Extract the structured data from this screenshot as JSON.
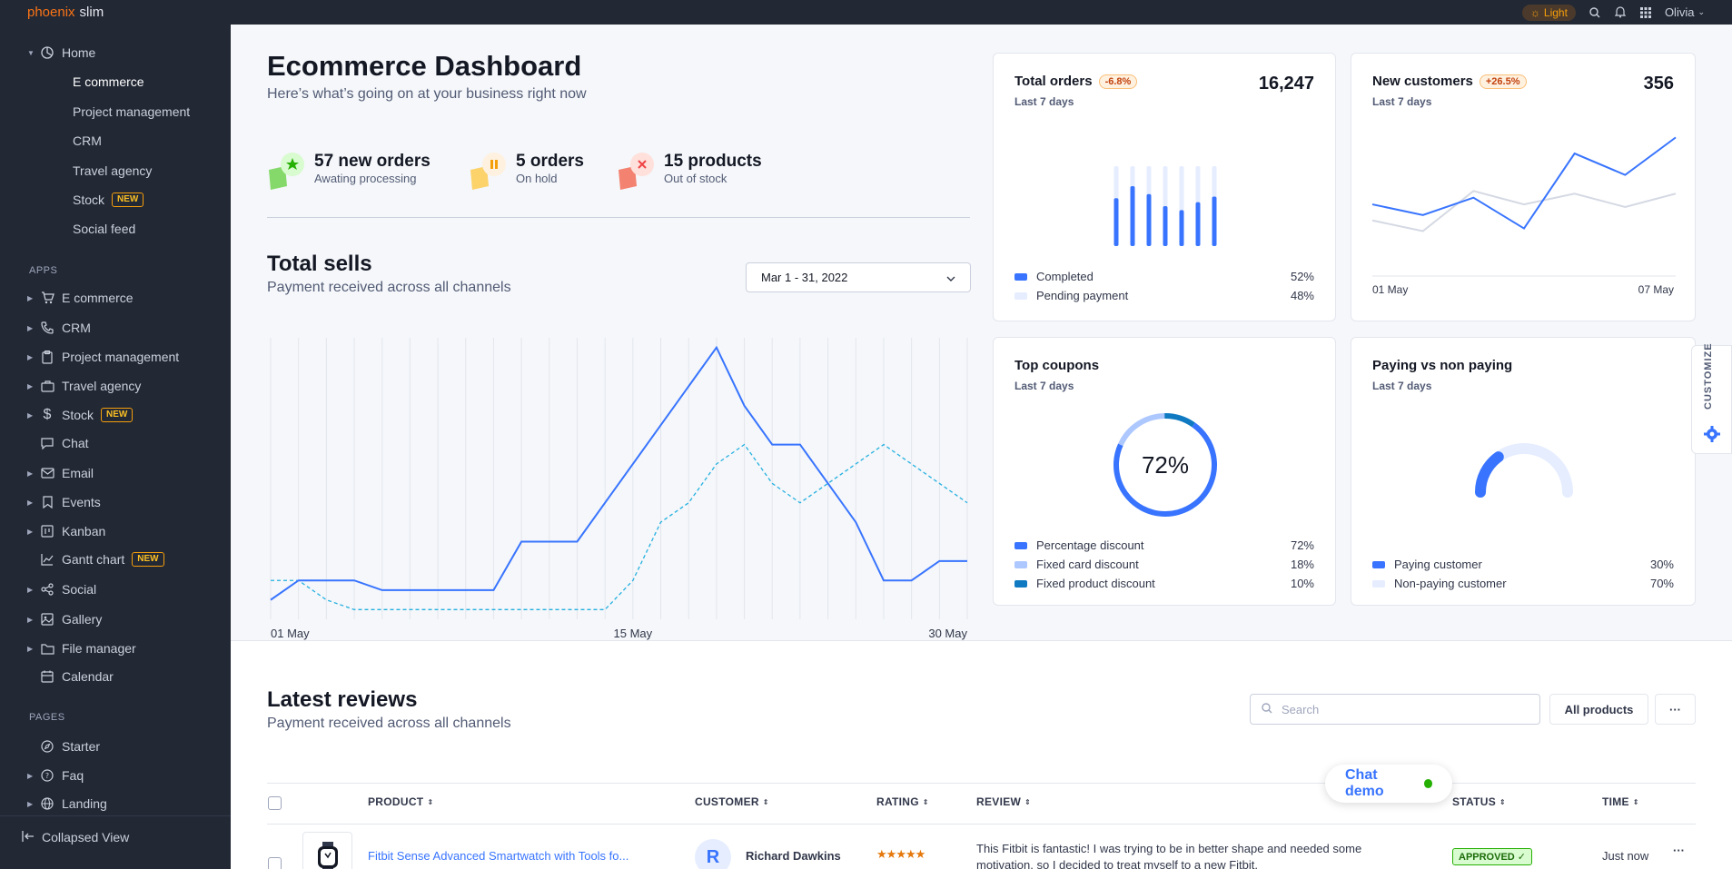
{
  "topbar": {
    "brand": "phoenix",
    "brand_suffix": "slim",
    "theme_label": "Light",
    "user_name": "Olivia"
  },
  "sidebar": {
    "home": "Home",
    "home_sub": [
      {
        "label": "E commerce"
      },
      {
        "label": "Project management"
      },
      {
        "label": "CRM"
      },
      {
        "label": "Travel agency"
      },
      {
        "label": "Stock",
        "badge": "NEW"
      },
      {
        "label": "Social feed"
      }
    ],
    "apps_label": "APPS",
    "apps": [
      {
        "label": "E commerce"
      },
      {
        "label": "CRM"
      },
      {
        "label": "Project management"
      },
      {
        "label": "Travel agency"
      },
      {
        "label": "Stock",
        "badge": "NEW"
      },
      {
        "label": "Chat"
      },
      {
        "label": "Email"
      },
      {
        "label": "Events"
      },
      {
        "label": "Kanban"
      },
      {
        "label": "Gantt chart",
        "badge": "NEW"
      },
      {
        "label": "Social"
      },
      {
        "label": "Gallery"
      },
      {
        "label": "File manager"
      },
      {
        "label": "Calendar"
      }
    ],
    "pages_label": "PAGES",
    "pages": [
      {
        "label": "Starter"
      },
      {
        "label": "Faq"
      },
      {
        "label": "Landing"
      }
    ],
    "collapsed_label": "Collapsed View"
  },
  "dashboard": {
    "title": "Ecommerce Dashboard",
    "subtitle": "Here’s what’s going on at your business right now",
    "stats": [
      {
        "title": "57 new orders",
        "sub": "Awating processing",
        "color": "#25b003"
      },
      {
        "title": "5 orders",
        "sub": "On hold",
        "color": "#f59e0b"
      },
      {
        "title": "15 products",
        "sub": "Out of stock",
        "color": "#ef4444"
      }
    ]
  },
  "total_sells": {
    "title": "Total sells",
    "subtitle": "Payment received across all channels",
    "date_range": "Mar 1 - 31, 2022",
    "x_labels": [
      "01 May",
      "15 May",
      "30 May"
    ]
  },
  "chart_data": [
    {
      "type": "line",
      "series": [
        {
          "values": [
            10,
            20,
            20,
            20,
            15,
            15,
            15,
            15,
            15,
            40,
            40,
            40,
            60,
            80,
            100,
            120,
            140,
            110,
            90,
            90,
            70,
            50,
            20,
            20,
            30,
            30
          ]
        },
        {
          "values": [
            20,
            20,
            10,
            5,
            5,
            5,
            5,
            5,
            5,
            5,
            5,
            5,
            5,
            20,
            50,
            60,
            80,
            90,
            70,
            60,
            70,
            80,
            90,
            80,
            70,
            60
          ]
        }
      ],
      "x_labels": [
        "01 May",
        "15 May",
        "30 May"
      ]
    },
    {
      "type": "bar",
      "title": "Total orders",
      "series": [
        {
          "name": "Completed",
          "values": [
            60,
            75,
            65,
            50,
            45,
            55,
            62
          ]
        },
        {
          "name": "Pending payment",
          "values": [
            40,
            25,
            35,
            50,
            55,
            45,
            38
          ]
        }
      ]
    },
    {
      "type": "line",
      "title": "New customers",
      "series": [
        {
          "values": [
            40,
            32,
            45,
            22,
            78,
            62,
            90
          ]
        },
        {
          "values": [
            28,
            20,
            50,
            40,
            48,
            38,
            48
          ]
        }
      ],
      "x_labels": [
        "01 May",
        "07 May"
      ]
    },
    {
      "type": "pie",
      "title": "Top coupons",
      "labels": [
        "Percentage discount",
        "Fixed card discount",
        "Fixed product discount"
      ],
      "values": [
        72,
        18,
        10
      ]
    },
    {
      "type": "pie",
      "title": "Paying vs non paying",
      "labels": [
        "Paying customer",
        "Non-paying customer"
      ],
      "values": [
        30,
        70
      ]
    }
  ],
  "cards": {
    "total_orders": {
      "title": "Total orders",
      "badge": "-6.8%",
      "period": "Last 7 days",
      "value": "16,247",
      "legend": [
        {
          "label": "Completed",
          "value": "52%",
          "color": "#3874ff"
        },
        {
          "label": "Pending payment",
          "value": "48%",
          "color": "#e5edff"
        }
      ]
    },
    "new_customers": {
      "title": "New customers",
      "badge": "+26.5%",
      "period": "Last 7 days",
      "value": "356",
      "x_start": "01 May",
      "x_end": "07 May"
    },
    "top_coupons": {
      "title": "Top coupons",
      "period": "Last 7 days",
      "center": "72%",
      "legend": [
        {
          "label": "Percentage discount",
          "value": "72%",
          "color": "#3874ff"
        },
        {
          "label": "Fixed card discount",
          "value": "18%",
          "color": "#adc7ff"
        },
        {
          "label": "Fixed product discount",
          "value": "10%",
          "color": "#0f7ac2"
        }
      ]
    },
    "paying": {
      "title": "Paying vs non paying",
      "period": "Last 7 days",
      "legend": [
        {
          "label": "Paying customer",
          "value": "30%",
          "color": "#3874ff"
        },
        {
          "label": "Non-paying customer",
          "value": "70%",
          "color": "#e5edff"
        }
      ]
    }
  },
  "reviews": {
    "title": "Latest reviews",
    "subtitle": "Payment received across all channels",
    "search_placeholder": "Search",
    "filter_label": "All products",
    "more_label": "···",
    "columns": [
      "PRODUCT",
      "CUSTOMER",
      "RATING",
      "REVIEW",
      "STATUS",
      "TIME"
    ],
    "rows": [
      {
        "product": "Fitbit Sense Advanced Smartwatch with Tools fo...",
        "customer": "Richard Dawkins",
        "avatar_initial": "R",
        "rating": 5,
        "review_line1": "This Fitbit is fantastic! I was trying to be in better shape and needed some",
        "review_line2": "motivation, so I decided to treat myself to a new Fitbit.",
        "status": "APPROVED ✓",
        "time": "Just now"
      }
    ]
  },
  "chat_demo": "Chat demo",
  "customize": "CUSTOMIZE"
}
